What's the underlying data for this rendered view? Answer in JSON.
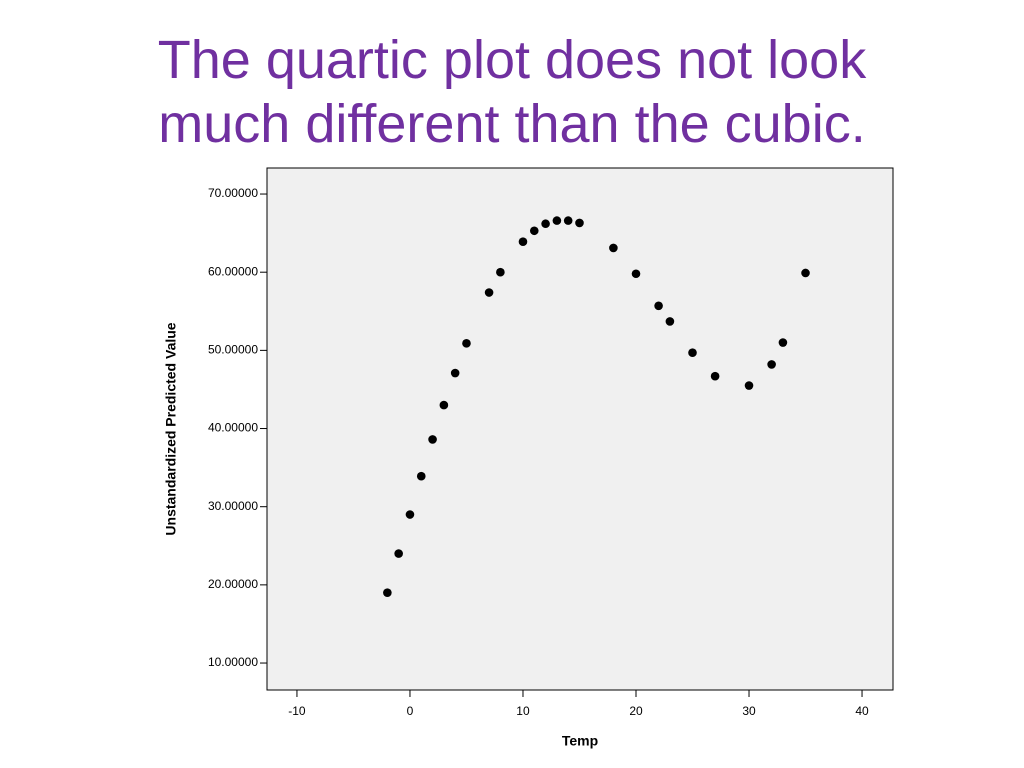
{
  "chart_data": {
    "type": "scatter",
    "title": "The quartic plot does not look much different than the cubic.",
    "x_label": "Temp",
    "y_label": "Unstandardized Predicted Value",
    "x": [
      -2,
      -1,
      0,
      1,
      2,
      3,
      4,
      5,
      7,
      8,
      10,
      11,
      12,
      13,
      14,
      15,
      18,
      20,
      22,
      23,
      25,
      27,
      30,
      32,
      33,
      35
    ],
    "values": [
      19.0,
      24.0,
      29.0,
      33.9,
      38.6,
      43.0,
      47.1,
      50.9,
      57.4,
      60.0,
      63.9,
      65.3,
      66.2,
      66.6,
      66.6,
      66.3,
      63.1,
      59.8,
      55.7,
      53.7,
      49.7,
      46.7,
      45.5,
      48.2,
      51.0,
      59.9
    ],
    "color": "#000000",
    "xlim": [
      -12.65,
      42.74
    ],
    "ylim": [
      6.55,
      73.33
    ],
    "xticks": [
      -10,
      0,
      10,
      20,
      30,
      40
    ],
    "yticks": [
      {
        "value": 10,
        "label": "10.00000"
      },
      {
        "value": 20,
        "label": "20.00000"
      },
      {
        "value": 30,
        "label": "30.00000"
      },
      {
        "value": 40,
        "label": "40.00000"
      },
      {
        "value": 50,
        "label": "50.00000"
      },
      {
        "value": 60,
        "label": "60.00000"
      },
      {
        "value": 70,
        "label": "70.00000"
      }
    ]
  }
}
